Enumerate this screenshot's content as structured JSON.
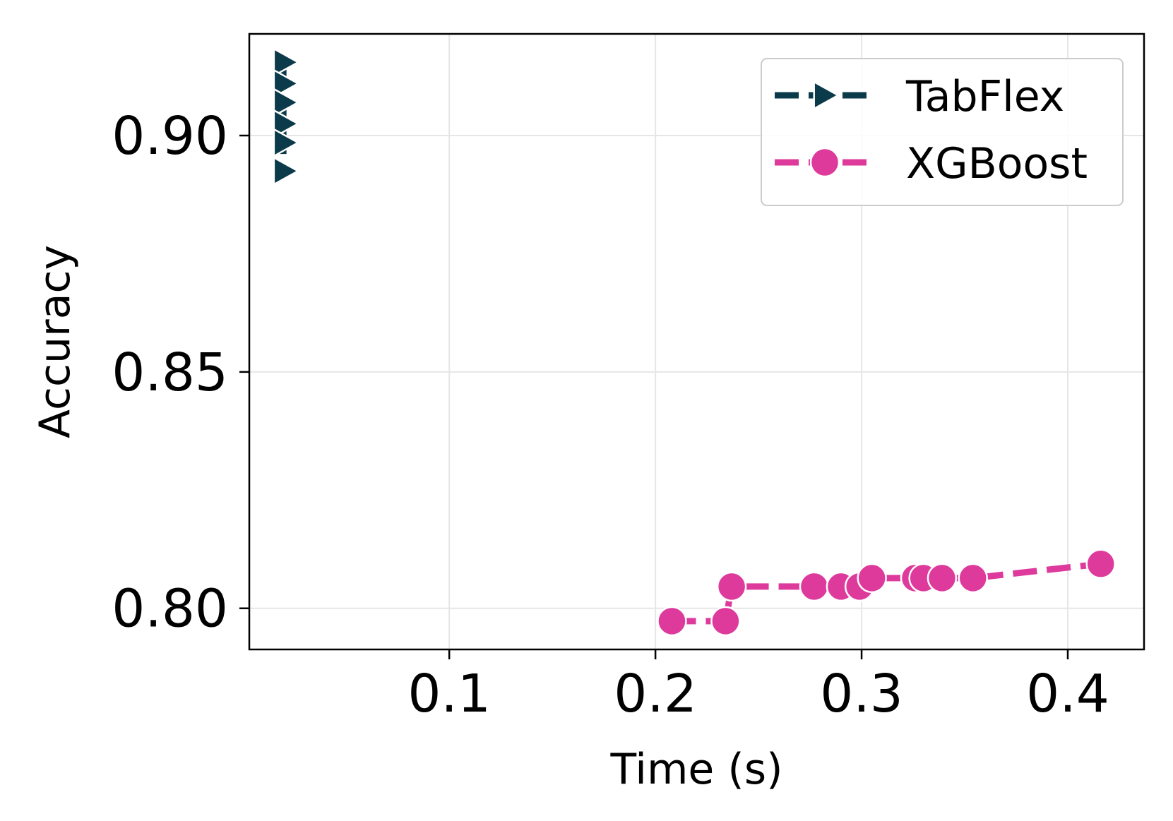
{
  "chart_data": {
    "type": "line",
    "title": "",
    "xlabel": "Time (s)",
    "ylabel": "Accuracy",
    "xlim": [
      0.003,
      0.437
    ],
    "ylim": [
      0.7913,
      0.9215
    ],
    "xticks": [
      0.1,
      0.2,
      0.3,
      0.4
    ],
    "xtick_labels": [
      "0.1",
      "0.2",
      "0.3",
      "0.4"
    ],
    "yticks": [
      0.8,
      0.85,
      0.9
    ],
    "ytick_labels": [
      "0.80",
      "0.85",
      "0.90"
    ],
    "grid": true,
    "legend_position": "top-right",
    "series": [
      {
        "name": "TabFlex",
        "color": "#0b3a4a",
        "marker": "triangle-right",
        "linestyle": "dashed",
        "x": [
          0.0195,
          0.0195,
          0.0195,
          0.0195,
          0.0195,
          0.0195
        ],
        "y": [
          0.9155,
          0.911,
          0.907,
          0.9025,
          0.8985,
          0.8925
        ]
      },
      {
        "name": "XGBoost",
        "color": "#dd3a9c",
        "marker": "circle",
        "linestyle": "dashed",
        "x": [
          0.208,
          0.234,
          0.237,
          0.277,
          0.29,
          0.299,
          0.305,
          0.326,
          0.33,
          0.339,
          0.354,
          0.416
        ],
        "y": [
          0.7973,
          0.7973,
          0.8046,
          0.8046,
          0.8046,
          0.8046,
          0.8064,
          0.8064,
          0.8064,
          0.8064,
          0.8064,
          0.8094
        ]
      }
    ]
  }
}
